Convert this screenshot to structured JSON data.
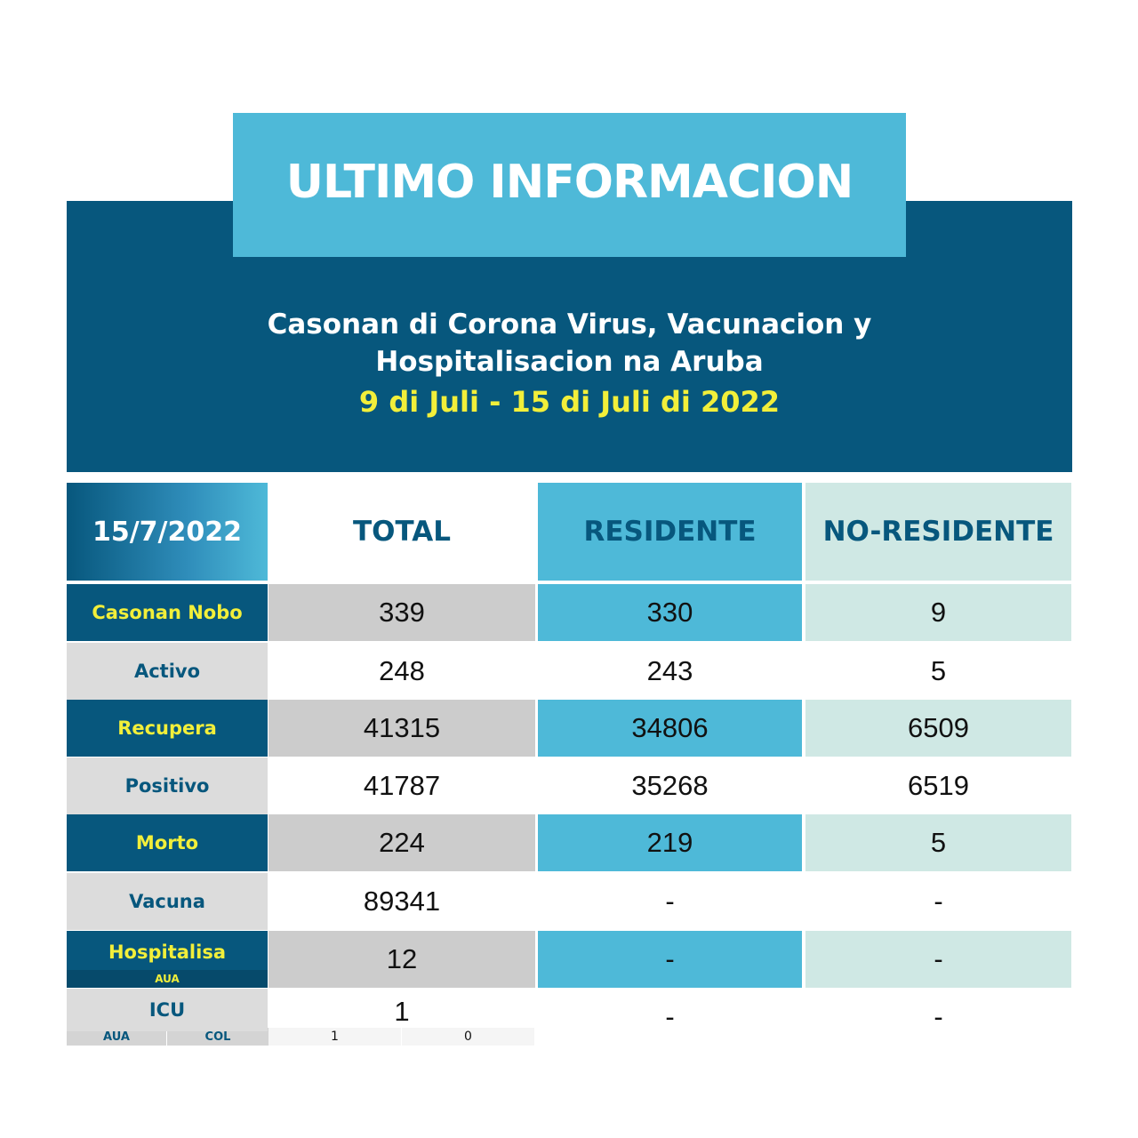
{
  "title": "ULTIMO INFORMACION",
  "subtitle_line1": "Casonan di Corona Virus, Vacunacion y",
  "subtitle_line2": "Hospitalisacion na Aruba",
  "date_range": "9 di Juli - 15 di Juli di 2022",
  "colors": {
    "dark_blue": "#07577d",
    "light_blue": "#4eb9d8",
    "yellow": "#f2ef3a",
    "pale": "#cfe8e4",
    "gray": "#cccccc"
  },
  "table": {
    "date": "15/7/2022",
    "headers": [
      "TOTAL",
      "RESIDENTE",
      "NO-RESIDENTE"
    ],
    "rows": [
      {
        "label": "Casonan Nobo",
        "total": "339",
        "residente": "330",
        "no_residente": "9"
      },
      {
        "label": "Activo",
        "total": "248",
        "residente": "243",
        "no_residente": "5"
      },
      {
        "label": "Recupera",
        "total": "41315",
        "residente": "34806",
        "no_residente": "6509"
      },
      {
        "label": "Positivo",
        "total": "41787",
        "residente": "35268",
        "no_residente": "6519"
      },
      {
        "label": "Morto",
        "total": "224",
        "residente": "219",
        "no_residente": "5"
      },
      {
        "label": "Vacuna",
        "total": "89341",
        "residente": "-",
        "no_residente": "-"
      },
      {
        "label": "Hospitalisa",
        "sublabel": "AUA",
        "total": "12",
        "residente": "-",
        "no_residente": "-"
      },
      {
        "label": "ICU",
        "sublabels": [
          "AUA",
          "COL"
        ],
        "subvalues": [
          "1",
          "0"
        ],
        "total": "1",
        "residente": "-",
        "no_residente": "-"
      }
    ]
  }
}
